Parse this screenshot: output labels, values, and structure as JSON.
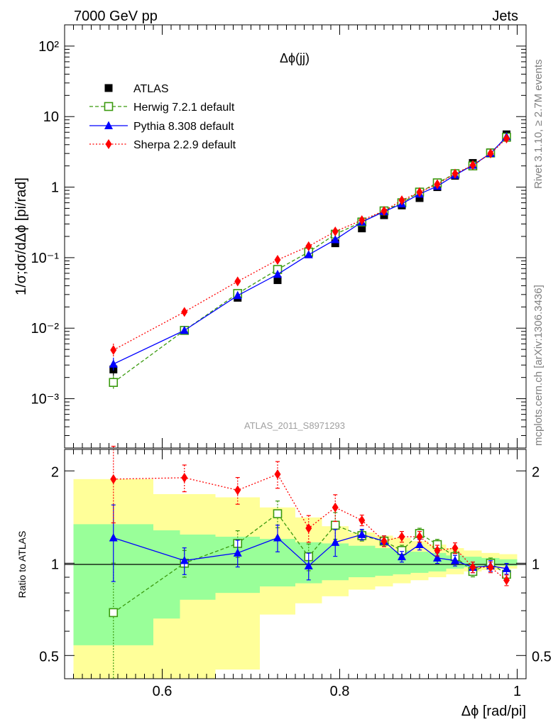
{
  "header": {
    "left": "7000 GeV pp",
    "right": "Jets"
  },
  "side_labels": {
    "top": "Rivet 3.1.10, ≥ 2.7M events",
    "bottom": "mcplots.cern.ch [arXiv:1306.3436]"
  },
  "colors": {
    "atlas": "#000000",
    "herwig": "#3a9a0e",
    "pythia": "#0000ff",
    "sherpa": "#ff0000",
    "band_inner": "#99ff99",
    "band_outer": "#ffff99"
  },
  "chart_data": [
    {
      "type": "scatter",
      "panel": "main",
      "title": "Δϕ(jj)",
      "ylabel": "1/σ;dσ/dΔϕ [pi/rad]",
      "xlabel": "",
      "watermark": "ATLAS_2011_S8971293",
      "yscale": "log",
      "xlim": [
        0.49,
        1.01
      ],
      "ylim": [
        0.0002,
        200
      ],
      "y_tick_labels": [
        "10⁻³",
        "10⁻²",
        "10⁻¹",
        "1",
        "10",
        "10²"
      ],
      "legend_position": "top-left",
      "x": [
        0.545,
        0.625,
        0.685,
        0.73,
        0.765,
        0.795,
        0.825,
        0.85,
        0.87,
        0.89,
        0.91,
        0.93,
        0.95,
        0.97,
        0.988
      ],
      "series": [
        {
          "name": "ATLAS",
          "marker": "filled-square",
          "values": [
            0.0026,
            0.0093,
            0.027,
            0.048,
            0.115,
            0.16,
            0.26,
            0.4,
            0.55,
            0.7,
            1.0,
            1.45,
            2.2,
            3.1,
            5.6
          ]
        },
        {
          "name": "Herwig 7.2.1 default",
          "marker": "open-square",
          "line": "dashed",
          "values": [
            0.0017,
            0.0093,
            0.031,
            0.068,
            0.12,
            0.215,
            0.32,
            0.46,
            0.6,
            0.85,
            1.15,
            1.55,
            2.0,
            3.05,
            5.1
          ]
        },
        {
          "name": "Pythia 8.308 default",
          "marker": "triangle",
          "line": "solid",
          "values": [
            0.0031,
            0.0093,
            0.029,
            0.058,
            0.11,
            0.18,
            0.32,
            0.45,
            0.58,
            0.8,
            1.03,
            1.48,
            2.05,
            3.0,
            5.2
          ]
        },
        {
          "name": "Sherpa 2.2.9 default",
          "marker": "diamond",
          "line": "dotted",
          "values": [
            0.0049,
            0.017,
            0.046,
            0.093,
            0.145,
            0.235,
            0.34,
            0.46,
            0.65,
            0.85,
            1.1,
            1.55,
            2.05,
            3.0,
            4.9
          ]
        }
      ]
    },
    {
      "type": "scatter",
      "panel": "ratio",
      "ylabel": "Ratio to ATLAS",
      "xlabel": "Δϕ [rad/pi]",
      "yscale": "log",
      "xlim": [
        0.49,
        1.01
      ],
      "ylim": [
        0.42,
        2.35
      ],
      "y_ticks": [
        0.5,
        1,
        2
      ],
      "y_tick_labels": [
        "0.5",
        "1",
        "2"
      ],
      "x_ticks": [
        0.6,
        0.8,
        1.0
      ],
      "x_tick_labels": [
        "0.6",
        "0.8",
        "1"
      ],
      "x": [
        0.545,
        0.625,
        0.685,
        0.73,
        0.765,
        0.795,
        0.825,
        0.85,
        0.87,
        0.89,
        0.91,
        0.93,
        0.95,
        0.97,
        0.988
      ],
      "series": [
        {
          "name": "Herwig 7.2.1 default",
          "values": [
            0.69,
            1.0,
            1.16,
            1.45,
            1.05,
            1.33,
            1.23,
            1.18,
            1.1,
            1.25,
            1.15,
            1.05,
            0.94,
            1.0,
            0.92
          ]
        },
        {
          "name": "Pythia 8.308 default",
          "values": [
            1.21,
            1.02,
            1.08,
            1.21,
            0.98,
            1.17,
            1.24,
            1.18,
            1.05,
            1.15,
            1.04,
            1.02,
            0.97,
            0.98,
            0.96
          ]
        },
        {
          "name": "Sherpa 2.2.9 default",
          "values": [
            1.88,
            1.9,
            1.73,
            1.95,
            1.3,
            1.52,
            1.38,
            1.18,
            1.22,
            1.22,
            1.1,
            1.12,
            0.97,
            0.97,
            0.88
          ]
        }
      ],
      "uncertainty_bands": {
        "edges": [
          0.5,
          0.59,
          0.62,
          0.66,
          0.71,
          0.75,
          0.78,
          0.81,
          0.84,
          0.86,
          0.88,
          0.9,
          0.92,
          0.94,
          0.96,
          0.98,
          1.0
        ],
        "inner_lo": [
          0.54,
          0.66,
          0.76,
          0.8,
          0.84,
          0.86,
          0.88,
          0.9,
          0.91,
          0.92,
          0.93,
          0.94,
          0.96,
          0.97,
          0.98,
          0.98
        ],
        "inner_hi": [
          1.34,
          1.28,
          1.24,
          1.22,
          1.2,
          1.17,
          1.16,
          1.14,
          1.12,
          1.1,
          1.09,
          1.08,
          1.06,
          1.05,
          1.04,
          1.03
        ],
        "outer_lo": [
          0.3,
          0.3,
          0.3,
          0.45,
          0.68,
          0.74,
          0.78,
          0.82,
          0.84,
          0.86,
          0.88,
          0.9,
          0.92,
          0.94,
          0.95,
          0.96
        ],
        "outer_hi": [
          1.88,
          1.68,
          1.68,
          1.64,
          1.52,
          1.41,
          1.32,
          1.26,
          1.23,
          1.21,
          1.18,
          1.15,
          1.12,
          1.1,
          1.08,
          1.07
        ]
      }
    }
  ]
}
